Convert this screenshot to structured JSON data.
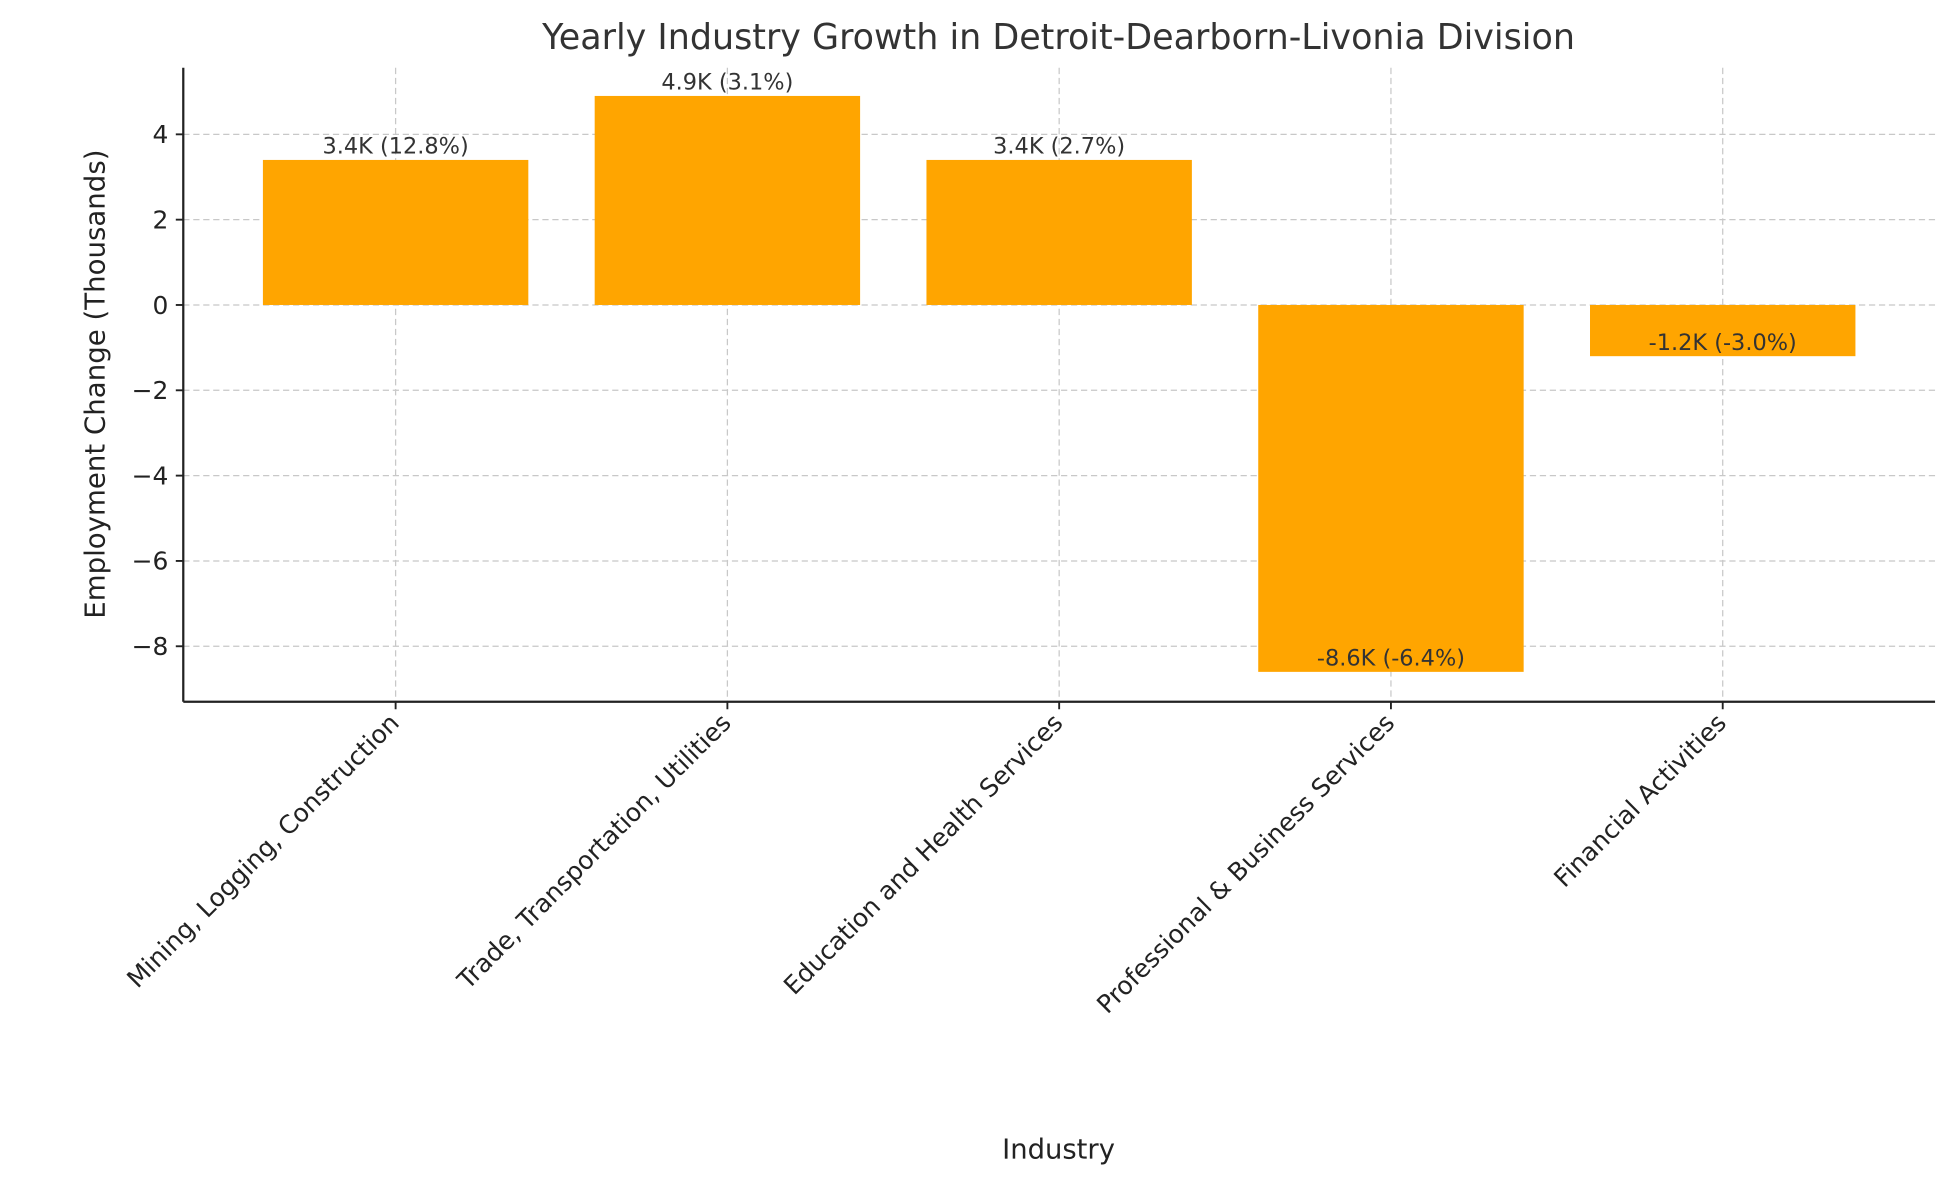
{
  "chart_data": {
    "type": "bar",
    "title": "Yearly Industry Growth in Detroit-Dearborn-Livonia Division",
    "xlabel": "Industry",
    "ylabel": "Employment Change (Thousands)",
    "categories": [
      "Mining, Logging, Construction",
      "Trade, Transportation, Utilities",
      "Education and Health Services",
      "Professional & Business Services",
      "Financial Activities"
    ],
    "values": [
      3.4,
      4.9,
      3.4,
      -8.6,
      -1.2
    ],
    "data_labels": [
      "3.4K (12.8%)",
      "4.9K (3.1%)",
      "3.4K (2.7%)",
      "-8.6K (-6.4%)",
      "-1.2K (-3.0%)"
    ],
    "yticks": [
      -8,
      -6,
      -4,
      -2,
      0,
      2,
      4
    ],
    "ytick_labels": [
      "−8",
      "−6",
      "−4",
      "−2",
      "0",
      "2",
      "4"
    ],
    "ylim": [
      -9.3,
      5.56
    ],
    "grid": true,
    "bar_color": "#FFA500",
    "xtick_rotation": 45
  }
}
